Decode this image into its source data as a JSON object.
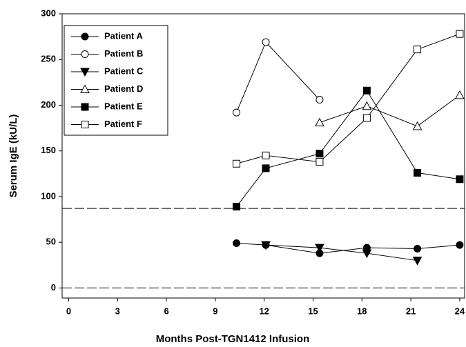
{
  "chart_data": {
    "type": "line",
    "xlabel": "Months Post-TGN1412 Infusion",
    "ylabel": "Serum IgE (kU/L)",
    "x": [
      10.3,
      12.1,
      15.4,
      18.3,
      21.4,
      24
    ],
    "xlim": [
      -0.4,
      24.3
    ],
    "xticks": [
      0,
      3,
      6,
      9,
      12,
      15,
      18,
      21,
      24
    ],
    "ylim": [
      -11,
      300
    ],
    "yticks": [
      0,
      50,
      100,
      150,
      200,
      250,
      300
    ],
    "reference_lines": [
      87,
      0
    ],
    "legend": "upper left",
    "series": [
      {
        "name": "Patient A",
        "color": "#000000",
        "marker": "circle",
        "filled": true,
        "values": [
          49,
          47,
          38,
          44,
          43,
          47
        ]
      },
      {
        "name": "Patient B",
        "color": "#000000",
        "marker": "circle",
        "filled": false,
        "values": [
          192,
          269,
          206,
          null,
          null,
          null
        ]
      },
      {
        "name": "Patient C",
        "color": "#000000",
        "marker": "triangle-down",
        "filled": true,
        "values": [
          null,
          47,
          44,
          38,
          30,
          null
        ]
      },
      {
        "name": "Patient D",
        "color": "#000000",
        "marker": "triangle-up",
        "filled": false,
        "values": [
          null,
          null,
          181,
          199,
          177,
          211
        ]
      },
      {
        "name": "Patient E",
        "color": "#000000",
        "marker": "square",
        "filled": true,
        "values": [
          89,
          131,
          147,
          216,
          126,
          119
        ]
      },
      {
        "name": "Patient F",
        "color": "#000000",
        "marker": "square",
        "filled": false,
        "values": [
          136,
          145,
          138,
          186,
          261,
          278
        ]
      }
    ]
  }
}
